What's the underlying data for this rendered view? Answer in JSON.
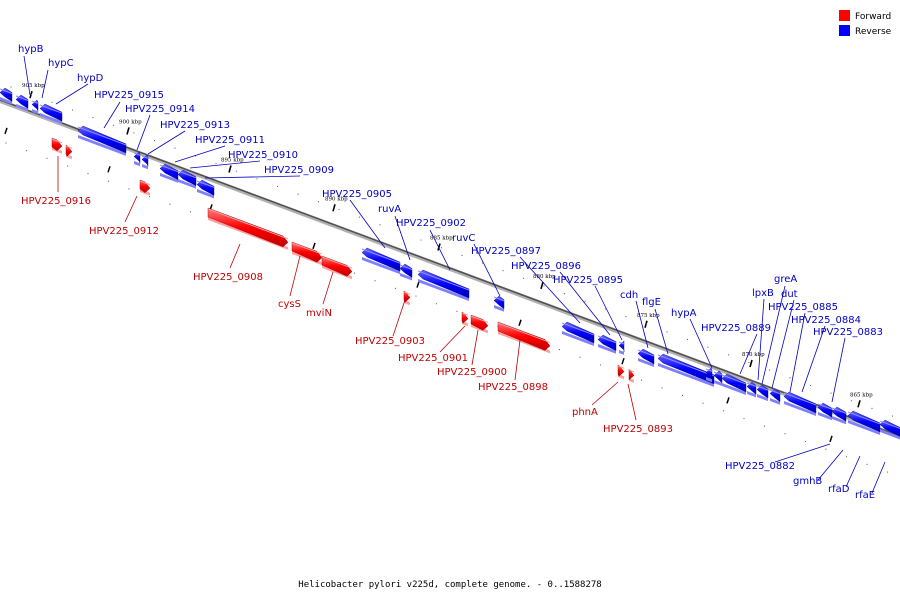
{
  "caption": "Helicobacter pylori v225d, complete genome. - 0..1588278",
  "legend": {
    "forward": {
      "label": "Forward",
      "color": "#ff0000"
    },
    "reverse": {
      "label": "Reverse",
      "color": "#0000ff"
    }
  },
  "ticks": [
    "905 kbp",
    "900 kbp",
    "895 kbp",
    "890 kbp",
    "885 kbp",
    "880 kbp",
    "875 kbp",
    "870 kbp",
    "865 kbp"
  ],
  "genes": {
    "reverse": [
      "hypB",
      "hypC",
      "hypD",
      "HPV225_0915",
      "HPV225_0914",
      "HPV225_0913",
      "HPV225_0911",
      "HPV225_0910",
      "HPV225_0909",
      "HPV225_0905",
      "ruvA",
      "HPV225_0902",
      "ruvC",
      "HPV225_0897",
      "HPV225_0896",
      "HPV225_0895",
      "cdh",
      "flgE",
      "hypA",
      "HPV225_0889",
      "lpxB",
      "greA",
      "dut",
      "HPV225_0885",
      "HPV225_0884",
      "HPV225_0883",
      "HPV225_0882",
      "gmhB",
      "rfaD",
      "rfaE"
    ],
    "forward": [
      "HPV225_0916",
      "HPV225_0912",
      "HPV225_0908",
      "cysS",
      "mviN",
      "HPV225_0903",
      "HPV225_0901",
      "HPV225_0900",
      "HPV225_0898",
      "phnA",
      "HPV225_0893"
    ]
  }
}
